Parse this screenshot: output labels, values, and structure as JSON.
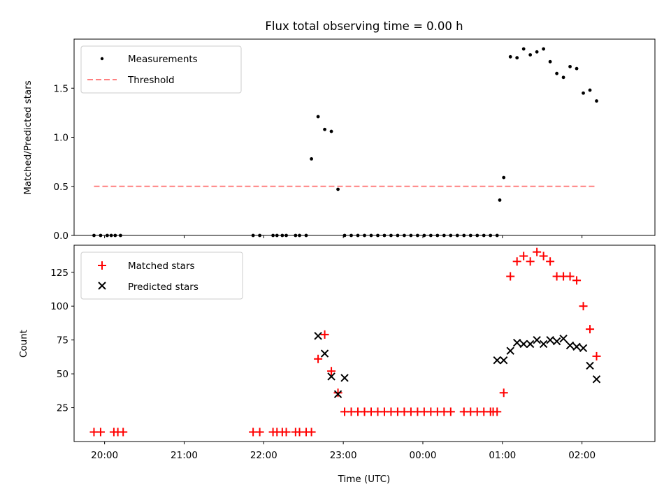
{
  "chart_data": [
    {
      "type": "scatter",
      "title": "Flux total observing time = 0.00 h",
      "xlabel": "",
      "ylabel": "Matched/Predicted stars",
      "xlim": [
        "19:37",
        "02:55"
      ],
      "ylim": [
        0,
        2.0
      ],
      "yticks": [
        "0.0",
        "0.5",
        "1.0",
        "1.5"
      ],
      "grid": false,
      "legend": "top-left",
      "series": [
        {
          "name": "Measurements",
          "marker": "dot",
          "color": "#000000",
          "x": [
            "19:52",
            "19:57",
            "20:02",
            "20:05",
            "20:08",
            "20:12",
            "21:52",
            "21:57",
            "22:07",
            "22:10",
            "22:14",
            "22:17",
            "22:24",
            "22:27",
            "22:32",
            "22:36",
            "22:41",
            "22:46",
            "22:51",
            "22:56",
            "23:01",
            "23:06",
            "23:11",
            "23:16",
            "23:21",
            "23:26",
            "23:31",
            "23:36",
            "23:41",
            "23:46",
            "23:51",
            "23:56",
            "00:01",
            "00:06",
            "00:11",
            "00:16",
            "00:21",
            "00:26",
            "00:31",
            "00:36",
            "00:41",
            "00:46",
            "00:51",
            "00:56",
            "00:58",
            "01:01",
            "01:06",
            "01:11",
            "01:16",
            "01:21",
            "01:26",
            "01:31",
            "01:36",
            "01:41",
            "01:46",
            "01:51",
            "01:56",
            "02:01",
            "02:06",
            "02:11"
          ],
          "y": [
            0,
            0,
            0,
            0,
            0,
            0,
            0,
            0,
            0,
            0,
            0,
            0,
            0,
            0,
            0,
            0.78,
            1.21,
            1.08,
            1.06,
            0.47,
            0,
            0,
            0,
            0,
            0,
            0,
            0,
            0,
            0,
            0,
            0,
            0,
            0,
            0,
            0,
            0,
            0,
            0,
            0,
            0,
            0,
            0,
            0,
            0,
            0.36,
            0.59,
            1.82,
            1.81,
            1.9,
            1.84,
            1.87,
            1.9,
            1.77,
            1.65,
            1.61,
            1.72,
            1.7,
            1.45,
            1.48,
            1.37
          ],
          "y_note": ""
        },
        {
          "name": "Threshold",
          "marker": "dashed-line",
          "color": "#ff8080",
          "x": [
            "19:52",
            "02:11"
          ],
          "y": [
            0.5,
            0.5
          ]
        }
      ]
    },
    {
      "type": "scatter",
      "title": "",
      "xlabel": "Time (UTC)",
      "ylabel": "Count",
      "xlim": [
        "19:37",
        "02:55"
      ],
      "ylim": [
        0,
        145
      ],
      "xticks": [
        "20:00",
        "21:00",
        "22:00",
        "23:00",
        "00:00",
        "01:00",
        "02:00"
      ],
      "yticks": [
        "25",
        "50",
        "75",
        "100",
        "125"
      ],
      "grid": false,
      "legend": "top-left",
      "series": [
        {
          "name": "Matched stars",
          "marker": "plus",
          "color": "#ff0000",
          "x": [
            "19:52",
            "19:57",
            "20:07",
            "20:10",
            "20:14",
            "21:52",
            "21:57",
            "22:07",
            "22:10",
            "22:14",
            "22:17",
            "22:24",
            "22:27",
            "22:32",
            "22:36",
            "22:41",
            "22:46",
            "22:51",
            "22:56",
            "23:01",
            "23:06",
            "23:11",
            "23:16",
            "23:21",
            "23:26",
            "23:31",
            "23:36",
            "23:41",
            "23:46",
            "23:51",
            "23:56",
            "00:01",
            "00:06",
            "00:11",
            "00:16",
            "00:21",
            "00:31",
            "00:36",
            "00:41",
            "00:46",
            "00:51",
            "00:53",
            "00:56",
            "01:01",
            "01:06",
            "01:11",
            "01:16",
            "01:21",
            "01:26",
            "01:31",
            "01:36",
            "01:41",
            "01:46",
            "01:51",
            "01:56",
            "02:01",
            "02:06",
            "02:11"
          ],
          "y": [
            7,
            7,
            7,
            7,
            7,
            7,
            7,
            7,
            7,
            7,
            7,
            7,
            7,
            7,
            7,
            61,
            79,
            52,
            36,
            22,
            22,
            22,
            22,
            22,
            22,
            22,
            22,
            22,
            22,
            22,
            22,
            22,
            22,
            22,
            22,
            22,
            22,
            22,
            22,
            22,
            22,
            22,
            22,
            36,
            122,
            133,
            137,
            133,
            140,
            137,
            133,
            122,
            122,
            122,
            119,
            100,
            83,
            63
          ]
        },
        {
          "name": "Predicted stars",
          "marker": "x",
          "color": "#000000",
          "x": [
            "22:41",
            "22:46",
            "22:51",
            "22:56",
            "23:01",
            "00:56",
            "01:01",
            "01:06",
            "01:11",
            "01:16",
            "01:21",
            "01:26",
            "01:31",
            "01:36",
            "01:41",
            "01:46",
            "01:51",
            "01:56",
            "02:01",
            "02:06",
            "02:11"
          ],
          "y": [
            78,
            65,
            48,
            35,
            47,
            60,
            60,
            67,
            73,
            72,
            72,
            75,
            72,
            75,
            74,
            76,
            71,
            70,
            69,
            56,
            46
          ]
        }
      ]
    }
  ]
}
